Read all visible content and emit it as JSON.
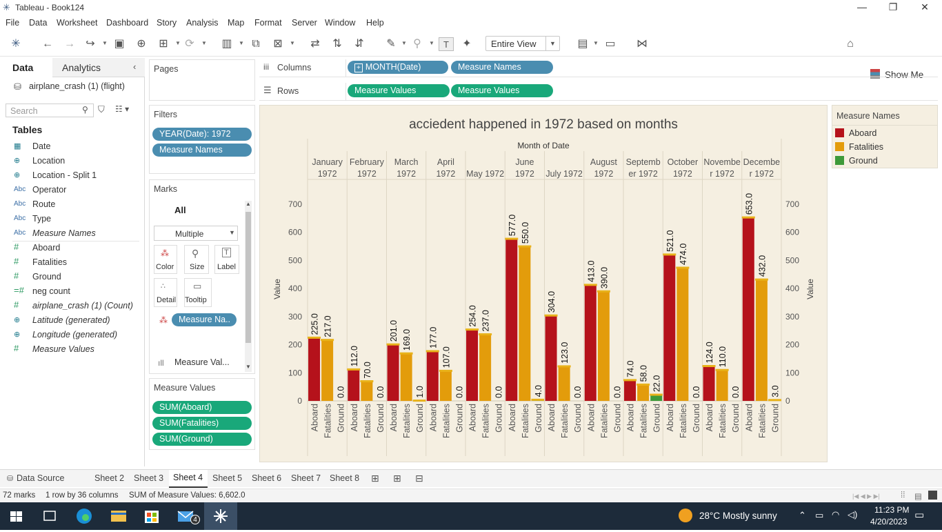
{
  "window": {
    "title": "Tableau - Book124"
  },
  "menu": [
    "File",
    "Data",
    "Worksheet",
    "Dashboard",
    "Story",
    "Analysis",
    "Map",
    "Format",
    "Server",
    "Window",
    "Help"
  ],
  "toolbar": {
    "view_select": "Entire View",
    "show_me": "Show Me"
  },
  "datapane": {
    "tab_data": "Data",
    "tab_analytics": "Analytics",
    "datasource": "airplane_crash (1) (flight)",
    "search_placeholder": "Search",
    "tables_header": "Tables",
    "fields": [
      {
        "icon": "calendar-icon",
        "label": "Date",
        "italic": false
      },
      {
        "icon": "globe-icon",
        "label": "Location",
        "italic": false
      },
      {
        "icon": "globe-icon",
        "label": "Location - Split 1",
        "italic": false
      },
      {
        "icon": "abc-icon",
        "label": "Operator",
        "italic": false
      },
      {
        "icon": "abc-icon",
        "label": "Route",
        "italic": false
      },
      {
        "icon": "abc-icon",
        "label": "Type",
        "italic": false
      },
      {
        "icon": "abc-icon",
        "label": "Measure Names",
        "italic": true
      },
      {
        "icon": "number-icon",
        "label": "Aboard",
        "italic": false
      },
      {
        "icon": "number-icon",
        "label": "Fatalities",
        "italic": false
      },
      {
        "icon": "number-icon",
        "label": "Ground",
        "italic": false
      },
      {
        "icon": "number-calc-icon",
        "label": "neg count",
        "italic": false
      },
      {
        "icon": "number-icon",
        "label": "airplane_crash (1) (Count)",
        "italic": true
      },
      {
        "icon": "globe-icon",
        "label": "Latitude (generated)",
        "italic": true
      },
      {
        "icon": "globe-icon",
        "label": "Longitude (generated)",
        "italic": true
      },
      {
        "icon": "number-icon",
        "label": "Measure Values",
        "italic": true
      }
    ]
  },
  "pages": {
    "header": "Pages"
  },
  "filters": {
    "header": "Filters",
    "pills": [
      "YEAR(Date): 1972",
      "Measure Names"
    ]
  },
  "marks": {
    "header": "Marks",
    "all": "All",
    "mark_type": "Multiple",
    "buttons": [
      "Color",
      "Size",
      "Label",
      "Detail",
      "Tooltip"
    ],
    "color_pill": "Measure Na..",
    "bottom_item": "Measure Val..."
  },
  "measure_values_card": {
    "header": "Measure Values",
    "pills": [
      "SUM(Aboard)",
      "SUM(Fatalities)",
      "SUM(Ground)"
    ]
  },
  "shelves": {
    "columns_label": "Columns",
    "rows_label": "Rows",
    "columns": [
      "MONTH(Date)",
      "Measure Names"
    ],
    "rows": [
      "Measure Values",
      "Measure Values"
    ]
  },
  "legend": {
    "title": "Measure Names",
    "items": [
      {
        "label": "Aboard",
        "color": "#b5121b"
      },
      {
        "label": "Fatalities",
        "color": "#e39c0b"
      },
      {
        "label": "Ground",
        "color": "#3e9a3a"
      }
    ]
  },
  "chart_data": {
    "type": "bar",
    "title": "acciedent happened in 1972 based on months",
    "header_label": "Month of Date",
    "ylabel": "Value",
    "ylim": [
      0,
      780
    ],
    "yticks": [
      0,
      100,
      200,
      300,
      400,
      500,
      600,
      700
    ],
    "categories": [
      [
        "January",
        "1972"
      ],
      [
        "February",
        "1972"
      ],
      [
        "March",
        "1972"
      ],
      [
        "April",
        "1972"
      ],
      [
        "May 1972"
      ],
      [
        "June",
        "1972"
      ],
      [
        "July 1972"
      ],
      [
        "August",
        "1972"
      ],
      [
        "Septemb",
        "er 1972"
      ],
      [
        "October",
        "1972"
      ],
      [
        "Novembe",
        "r 1972"
      ],
      [
        "Decembe",
        "r 1972"
      ]
    ],
    "measure_labels": [
      "Aboard",
      "Fatalities",
      "Ground"
    ],
    "series": [
      {
        "name": "Aboard",
        "color": "#b5121b",
        "values": [
          225,
          112,
          201,
          177,
          254,
          577,
          304,
          413,
          74,
          521,
          124,
          653
        ]
      },
      {
        "name": "Fatalities",
        "color": "#e39c0b",
        "values": [
          217,
          70,
          169,
          107,
          237,
          550,
          123,
          390,
          58,
          474,
          110,
          432
        ]
      },
      {
        "name": "Ground",
        "color": "#3e9a3a",
        "values": [
          0,
          0,
          1,
          0,
          0,
          4,
          0,
          0,
          22,
          0,
          0,
          3
        ]
      }
    ]
  },
  "sheet_tabs": {
    "data_source": "Data Source",
    "sheets": [
      "Sheet 2",
      "Sheet 3",
      "Sheet 4",
      "Sheet 5",
      "Sheet 6",
      "Sheet 7",
      "Sheet 8"
    ],
    "active": "Sheet 4"
  },
  "status": {
    "marks": "72 marks",
    "rows_cols": "1 row by 36 columns",
    "sum": "SUM of Measure Values: 6,602.0"
  },
  "taskbar": {
    "weather": "28°C  Mostly sunny",
    "time": "11:23 PM",
    "date": "4/20/2023",
    "mail_badge": "4"
  }
}
